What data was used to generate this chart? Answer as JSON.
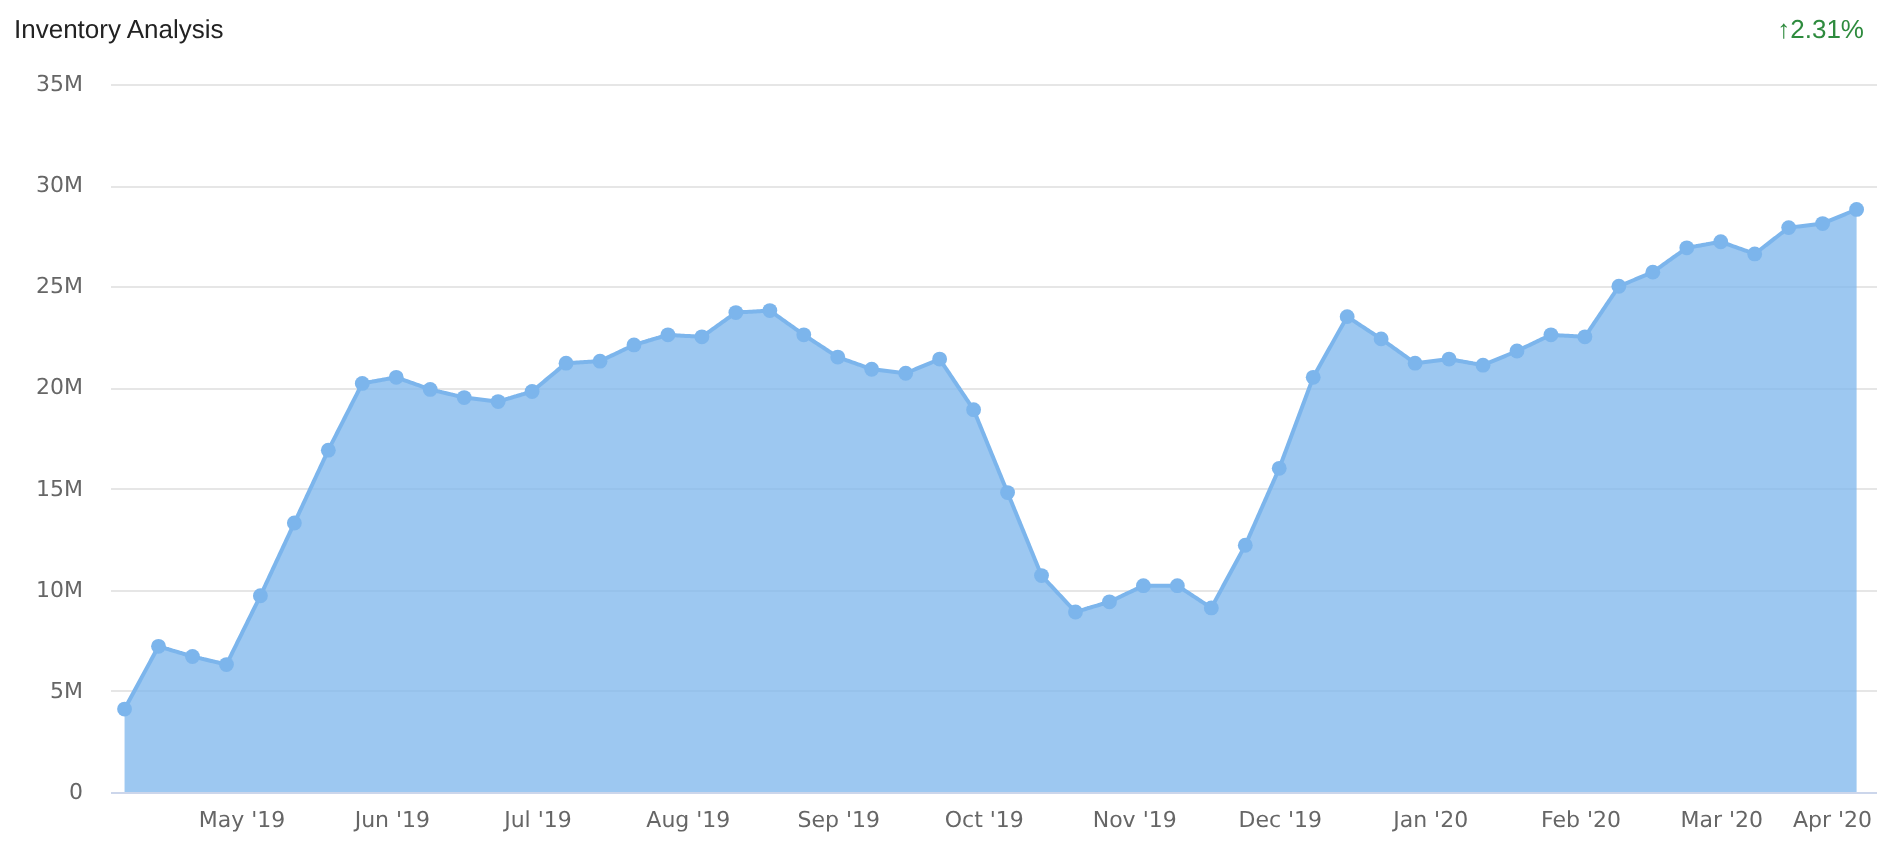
{
  "chart_data": {
    "type": "area",
    "title": "Inventory Analysis",
    "annotations": [
      "↑2.31%"
    ],
    "x": [
      "2019-04-07",
      "2019-04-14",
      "2019-04-21",
      "2019-04-28",
      "2019-05-05",
      "2019-05-12",
      "2019-05-19",
      "2019-05-26",
      "2019-06-02",
      "2019-06-09",
      "2019-06-16",
      "2019-06-23",
      "2019-06-30",
      "2019-07-07",
      "2019-07-14",
      "2019-07-21",
      "2019-07-28",
      "2019-08-04",
      "2019-08-11",
      "2019-08-18",
      "2019-08-25",
      "2019-09-01",
      "2019-09-08",
      "2019-09-15",
      "2019-09-22",
      "2019-09-29",
      "2019-10-06",
      "2019-10-13",
      "2019-10-20",
      "2019-10-27",
      "2019-11-03",
      "2019-11-10",
      "2019-11-17",
      "2019-11-24",
      "2019-12-01",
      "2019-12-08",
      "2019-12-15",
      "2019-12-22",
      "2019-12-29",
      "2020-01-05",
      "2020-01-12",
      "2020-01-19",
      "2020-01-26",
      "2020-02-02",
      "2020-02-09",
      "2020-02-16",
      "2020-02-23",
      "2020-03-01",
      "2020-03-08",
      "2020-03-15",
      "2020-03-22",
      "2020-03-29"
    ],
    "series": [
      {
        "color": "#7cb5ec",
        "values": [
          4.1,
          7.2,
          6.7,
          6.3,
          9.7,
          13.3,
          16.9,
          20.2,
          20.5,
          19.9,
          19.5,
          19.3,
          19.8,
          21.2,
          21.3,
          22.1,
          22.6,
          22.5,
          23.7,
          23.8,
          22.6,
          21.5,
          20.9,
          20.7,
          21.4,
          18.9,
          14.8,
          10.7,
          8.9,
          9.4,
          10.2,
          10.2,
          9.1,
          12.2,
          16.0,
          20.5,
          23.5,
          22.4,
          21.2,
          21.4,
          21.1,
          21.8,
          22.6,
          22.5,
          25.0,
          25.7,
          26.9,
          27.2,
          26.6,
          27.9,
          28.1,
          28.8
        ]
      }
    ],
    "xlim": [
      "2019-04-04",
      "2020-04-02"
    ],
    "xticks": [
      {
        "value": "2019-05-01",
        "label": "May '19"
      },
      {
        "value": "2019-06-01",
        "label": "Jun '19"
      },
      {
        "value": "2019-07-01",
        "label": "Jul '19"
      },
      {
        "value": "2019-08-01",
        "label": "Aug '19"
      },
      {
        "value": "2019-09-01",
        "label": "Sep '19"
      },
      {
        "value": "2019-10-01",
        "label": "Oct '19"
      },
      {
        "value": "2019-11-01",
        "label": "Nov '19"
      },
      {
        "value": "2019-12-01",
        "label": "Dec '19"
      },
      {
        "value": "2020-01-01",
        "label": "Jan '20"
      },
      {
        "value": "2020-02-01",
        "label": "Feb '20"
      },
      {
        "value": "2020-03-01",
        "label": "Mar '20"
      },
      {
        "value": "2020-04-01",
        "label": "Apr '20"
      }
    ],
    "ylim": [
      0,
      35
    ],
    "yticks": [
      0,
      {
        "value": 5,
        "label": "5M"
      },
      {
        "value": 10,
        "label": "10M"
      },
      {
        "value": 15,
        "label": "15M"
      },
      {
        "value": 20,
        "label": "20M"
      },
      {
        "value": 25,
        "label": "25M"
      },
      {
        "value": 30,
        "label": "30M"
      },
      {
        "value": 35,
        "label": "35M"
      }
    ],
    "grid": "y",
    "marker": "circle",
    "line_style": "solid"
  }
}
